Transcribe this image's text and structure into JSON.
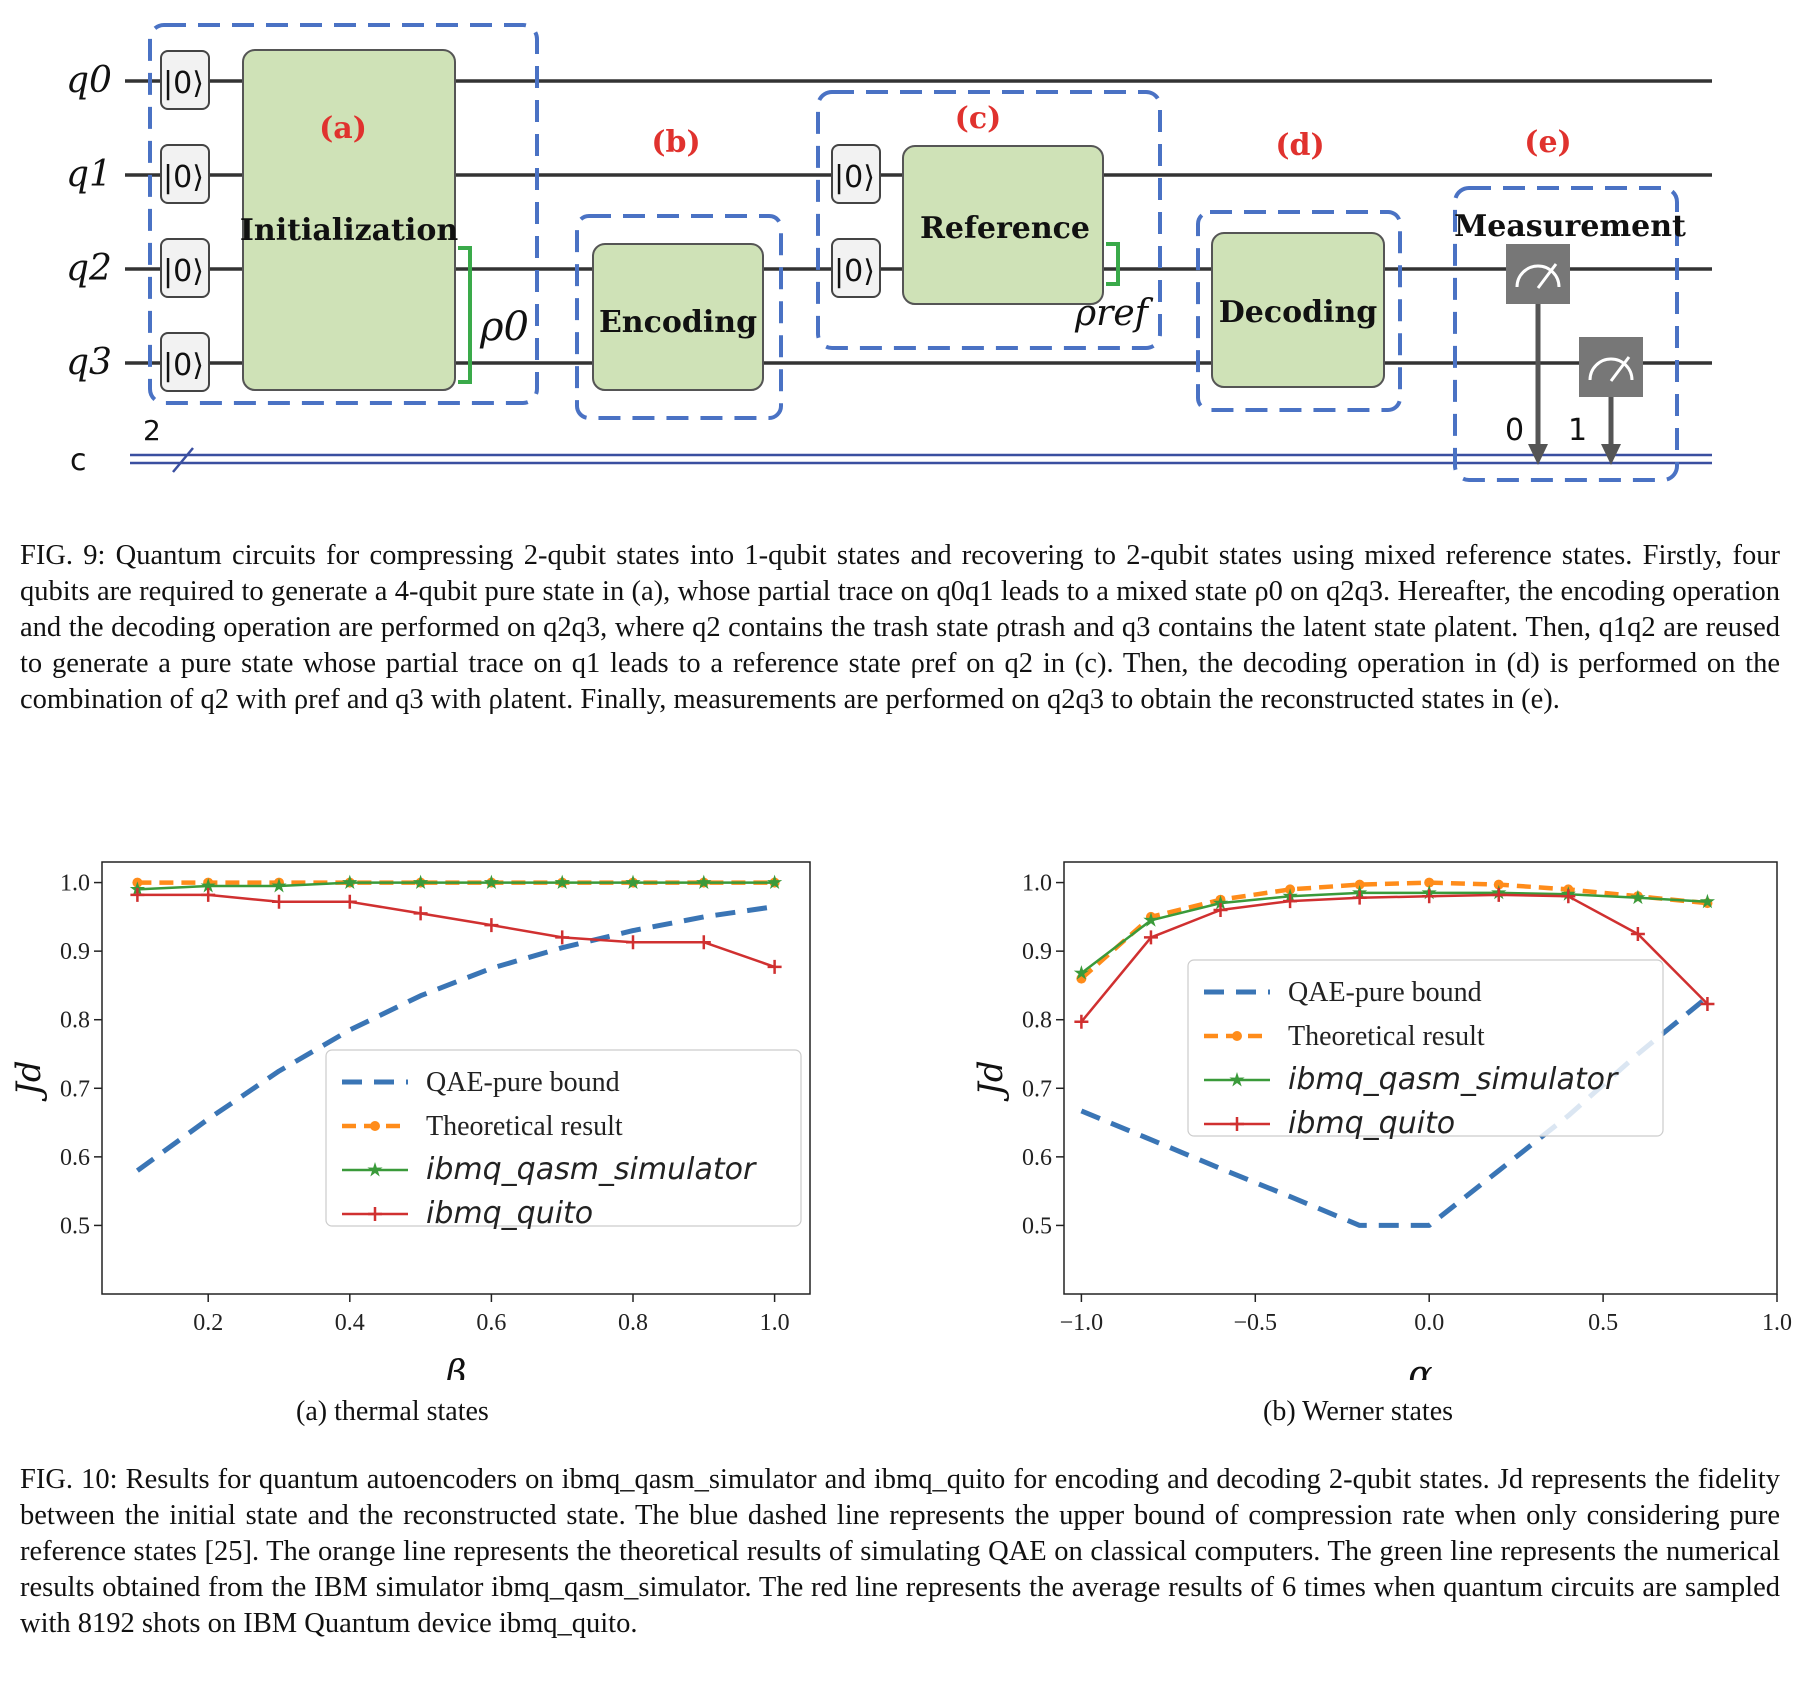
{
  "circuit": {
    "qubits": [
      "q0",
      "q1",
      "q2",
      "q3"
    ],
    "classical_register": "c",
    "classical_width": "2",
    "ket": "|0⟩",
    "blocks": {
      "a": {
        "tag": "(a)",
        "label": "Initialization"
      },
      "b": {
        "tag": "(b)",
        "label": "Encoding"
      },
      "c": {
        "tag": "(c)",
        "label": "Reference"
      },
      "d": {
        "tag": "(d)",
        "label": "Decoding"
      },
      "e": {
        "tag": "(e)",
        "label": "Measurement"
      }
    },
    "rho0_label": "ρ0",
    "rhoref_label": "ρref",
    "meas_bits": [
      "0",
      "1"
    ],
    "colors": {
      "gate_fill": "#cfe2b7",
      "dash": "#4a72c4",
      "tag": "#e0322e",
      "bracket": "#3aaa4a",
      "meter": "#777777"
    }
  },
  "fig9_caption": {
    "label": "FIG. 9:",
    "text": "Quantum circuits for compressing 2-qubit states into 1-qubit states and recovering to 2-qubit states using mixed reference states. Firstly, four qubits are required to generate a 4-qubit pure state in (a), whose partial trace on q0q1 leads to a mixed state ρ0 on q2q3. Hereafter, the encoding operation and the decoding operation are performed on q2q3, where q2 contains the trash state ρtrash and q3 contains the latent state ρlatent. Then, q1q2 are reused to generate a pure state whose partial trace on q1 leads to a reference state ρref on q2 in (c). Then, the decoding operation in (d) is performed on the combination of q2 with ρref and q3 with ρlatent. Finally, measurements are performed on q2q3 to obtain the reconstructed states in (e)."
  },
  "chart_data": [
    {
      "type": "line",
      "subcaption": "(a) thermal states",
      "xlabel": "β",
      "ylabel": "Jd",
      "xlim": [
        0.05,
        1.05
      ],
      "ylim": [
        0.4,
        1.03
      ],
      "xticks": [
        "0.2",
        "0.4",
        "0.6",
        "0.8",
        "1.0"
      ],
      "yticks": [
        "0.5",
        "0.6",
        "0.7",
        "0.8",
        "0.9",
        "1.0"
      ],
      "legend_position": "lower-right",
      "x": [
        0.1,
        0.2,
        0.3,
        0.4,
        0.5,
        0.6,
        0.7,
        0.8,
        0.9,
        1.0
      ],
      "series": [
        {
          "name": "QAE-pure bound",
          "color": "#3a75b5",
          "style": "dashed",
          "values": [
            0.58,
            0.655,
            0.725,
            0.785,
            0.835,
            0.875,
            0.905,
            0.93,
            0.95,
            0.965
          ]
        },
        {
          "name": "Theoretical result",
          "color": "#ff8c1a",
          "style": "dashed-dot",
          "values": [
            1.0,
            1.0,
            1.0,
            1.0,
            1.0,
            1.0,
            1.0,
            1.0,
            1.0,
            1.0
          ]
        },
        {
          "name": "ibmq_qasm_simulator",
          "color": "#3a9a3a",
          "style": "star",
          "values": [
            0.99,
            0.995,
            0.995,
            1.0,
            1.0,
            1.0,
            1.0,
            1.0,
            1.0,
            1.0
          ]
        },
        {
          "name": "ibmq_quito",
          "color": "#d03030",
          "style": "plus",
          "values": [
            0.982,
            0.982,
            0.972,
            0.972,
            0.955,
            0.938,
            0.92,
            0.913,
            0.913,
            0.877
          ]
        }
      ]
    },
    {
      "type": "line",
      "subcaption": "(b) Werner states",
      "xlabel": "α",
      "ylabel": "Jd",
      "xlim": [
        -1.05,
        1.0
      ],
      "ylim": [
        0.4,
        1.03
      ],
      "xticks": [
        "−1.0",
        "−0.5",
        "0.0",
        "0.5",
        "1.0"
      ],
      "yticks": [
        "0.5",
        "0.6",
        "0.7",
        "0.8",
        "0.9",
        "1.0"
      ],
      "legend_position": "center",
      "x": [
        -1.0,
        -0.8,
        -0.6,
        -0.4,
        -0.2,
        0.0,
        0.2,
        0.4,
        0.6,
        0.8
      ],
      "series": [
        {
          "name": "QAE-pure bound",
          "color": "#3a75b5",
          "style": "dashed",
          "values": [
            0.667,
            0.625,
            0.583,
            0.542,
            0.5,
            0.5,
            0.58,
            0.66,
            0.75,
            0.833
          ]
        },
        {
          "name": "Theoretical result",
          "color": "#ff8c1a",
          "style": "dashed-dot",
          "values": [
            0.86,
            0.95,
            0.975,
            0.99,
            0.997,
            1.0,
            0.997,
            0.99,
            0.98,
            0.97
          ]
        },
        {
          "name": "ibmq_qasm_simulator",
          "color": "#3a9a3a",
          "style": "star",
          "values": [
            0.868,
            0.945,
            0.97,
            0.98,
            0.985,
            0.985,
            0.985,
            0.983,
            0.978,
            0.972
          ]
        },
        {
          "name": "ibmq_quito",
          "color": "#d03030",
          "style": "plus",
          "values": [
            0.797,
            0.92,
            0.96,
            0.973,
            0.978,
            0.98,
            0.982,
            0.98,
            0.925,
            0.823
          ]
        }
      ]
    }
  ],
  "fig10_caption": {
    "label": "FIG. 10:",
    "text": "Results for quantum autoencoders on ibmq_qasm_simulator and ibmq_quito for encoding and decoding 2-qubit states. Jd represents the fidelity between the initial state and the reconstructed state. The blue dashed line represents the upper bound of compression rate when only considering pure reference states [25]. The orange line represents the theoretical results of simulating QAE on classical computers. The green line represents the numerical results obtained from the IBM simulator ibmq_qasm_simulator. The red line represents the average results of 6 times when quantum circuits are sampled with 8192 shots on IBM Quantum device ibmq_quito."
  }
}
